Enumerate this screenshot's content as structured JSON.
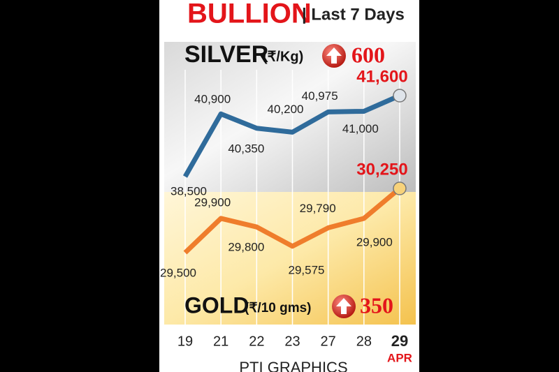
{
  "chart_data": {
    "type": "line",
    "title": "BULLION",
    "subtitle": "| Last 7 Days",
    "categories": [
      "19",
      "21",
      "22",
      "23",
      "27",
      "28",
      "29"
    ],
    "month": "APR",
    "source": "PTI GRAPHICS",
    "series": [
      {
        "name": "SILVER",
        "unit": "(₹/Kg)",
        "change": 600,
        "color": "#2f6b9b",
        "values": [
          38500,
          40900,
          40350,
          40200,
          40975,
          41000,
          41600
        ],
        "value_labels": [
          "38,500",
          "40,900",
          "40,350",
          "40,200",
          "40,975",
          "41,000",
          "41,600"
        ]
      },
      {
        "name": "GOLD",
        "unit": "(₹/10 gms)",
        "change": 350,
        "color": "#ef7d2c",
        "values": [
          29500,
          29900,
          29800,
          29575,
          29790,
          29900,
          30250
        ],
        "value_labels": [
          "29,500",
          "29,900",
          "29,800",
          "29,575",
          "29,790",
          "29,900",
          "30,250"
        ]
      }
    ]
  }
}
